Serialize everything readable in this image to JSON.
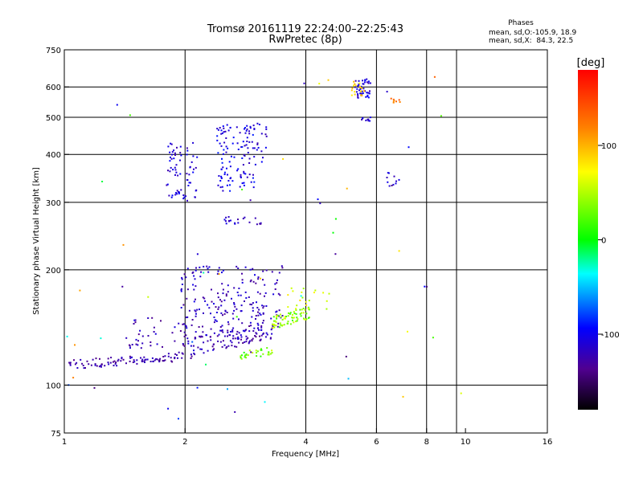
{
  "chart_data": {
    "type": "scatter",
    "title": "Tromsø 20161119 22:24:00–22:25:43",
    "subtitle": "RwPretec (8p)",
    "xlabel": "Frequency [MHz]",
    "ylabel": "Stationary phase Virtual Height [km]",
    "x_scale": "log",
    "y_scale": "log",
    "xlim": [
      1,
      16
    ],
    "ylim": [
      75,
      750
    ],
    "x_ticks": [
      1,
      2,
      4,
      6,
      8,
      10,
      16
    ],
    "x_tick_labels": [
      "1",
      "2",
      "4",
      "6",
      "8",
      "10",
      "16"
    ],
    "x_gridlines": [
      2,
      4,
      6,
      8,
      9.5
    ],
    "y_ticks": [
      75,
      100,
      200,
      300,
      400,
      500,
      600,
      750
    ],
    "y_tick_labels": [
      "75",
      "100",
      "200",
      "300",
      "400",
      "500",
      "600",
      "750"
    ],
    "y_gridlines": [
      100,
      200,
      300,
      400,
      500,
      600
    ],
    "grid": true,
    "stats": {
      "heading": "Phases",
      "line1": "mean, sd,O:-105.9, 18.9",
      "line2": "mean, sd,X:  84.3, 22.5"
    },
    "colorbar": {
      "label": "[deg]",
      "range": [
        -180,
        180
      ],
      "ticks": [
        100,
        0,
        -100
      ],
      "tick_labels": [
        "100",
        "0",
        "-100"
      ],
      "colors": [
        "#ff0000",
        "#ff8000",
        "#ffff00",
        "#00ff00",
        "#00ffff",
        "#0000ff",
        "#500090",
        "#000000"
      ]
    },
    "clusters": [
      {
        "xmin": 1.02,
        "xmax": 1.9,
        "ymin": 113,
        "ymax": 122,
        "phase": -115,
        "count": 90,
        "slope": 0.6
      },
      {
        "xmin": 1.9,
        "xmax": 3.3,
        "ymin": 122,
        "ymax": 150,
        "phase": -112,
        "count": 110,
        "slope": 0.7
      },
      {
        "xmin": 1.95,
        "xmax": 3.5,
        "ymin": 130,
        "ymax": 205,
        "phase": -108,
        "count": 220,
        "slope": 0
      },
      {
        "xmin": 1.4,
        "xmax": 2.0,
        "ymin": 125,
        "ymax": 150,
        "phase": -112,
        "count": 35,
        "slope": 0
      },
      {
        "xmin": 2.7,
        "xmax": 3.3,
        "ymin": 118,
        "ymax": 128,
        "phase": 50,
        "count": 30,
        "slope": 0.6
      },
      {
        "xmin": 3.3,
        "xmax": 4.1,
        "ymin": 145,
        "ymax": 162,
        "phase": 55,
        "count": 70,
        "slope": 0.6
      },
      {
        "xmin": 3.6,
        "xmax": 4.6,
        "ymin": 155,
        "ymax": 180,
        "phase": 75,
        "count": 20,
        "slope": 0
      },
      {
        "xmin": 1.8,
        "xmax": 2.15,
        "ymin": 300,
        "ymax": 430,
        "phase": -95,
        "count": 70,
        "slope": 0
      },
      {
        "xmin": 2.4,
        "xmax": 3.0,
        "ymin": 320,
        "ymax": 480,
        "phase": -90,
        "count": 110,
        "slope": 0
      },
      {
        "xmin": 2.8,
        "xmax": 3.2,
        "ymin": 380,
        "ymax": 490,
        "phase": -95,
        "count": 20,
        "slope": 0
      },
      {
        "xmin": 2.5,
        "xmax": 3.1,
        "ymin": 262,
        "ymax": 275,
        "phase": -105,
        "count": 20,
        "slope": 0
      },
      {
        "xmin": 5.3,
        "xmax": 5.8,
        "ymin": 560,
        "ymax": 630,
        "phase": -95,
        "count": 45,
        "slope": 0
      },
      {
        "xmin": 5.2,
        "xmax": 5.6,
        "ymin": 565,
        "ymax": 620,
        "phase": 95,
        "count": 18,
        "slope": 0
      },
      {
        "xmin": 5.5,
        "xmax": 5.8,
        "ymin": 485,
        "ymax": 500,
        "phase": -95,
        "count": 10,
        "slope": 0
      },
      {
        "xmin": 6.5,
        "xmax": 6.9,
        "ymin": 545,
        "ymax": 560,
        "phase": 140,
        "count": 8,
        "slope": 0
      },
      {
        "xmin": 6.2,
        "xmax": 6.9,
        "ymin": 330,
        "ymax": 360,
        "phase": -90,
        "count": 10,
        "slope": 0
      },
      {
        "xmin": 1.0,
        "xmax": 10,
        "ymin": 80,
        "ymax": 700,
        "phase": 0,
        "count": 55,
        "slope": 0
      }
    ]
  }
}
